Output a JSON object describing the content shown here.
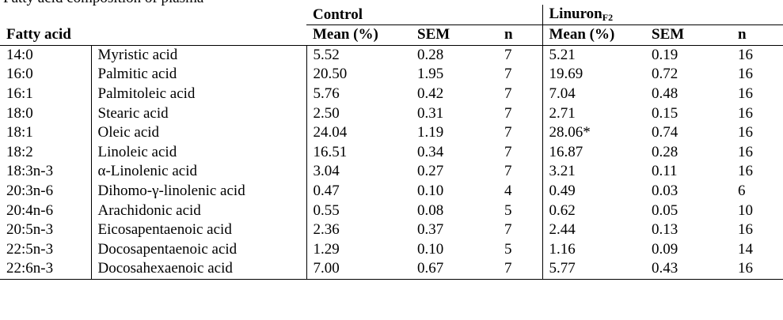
{
  "caption_fragment": "Fatty acid composition of plasma",
  "header": {
    "control_group": "Control",
    "linuron_group": "Linuron",
    "linuron_subscript": "F2",
    "fatty_acid": "Fatty acid",
    "mean_label": "Mean (%)",
    "sem_label": "SEM",
    "n_label": "n"
  },
  "rows": [
    {
      "code": "14:0",
      "name": "Myristic acid",
      "c_mean": "5.52",
      "c_sem": "0.28",
      "c_n": "7",
      "l_mean": "5.21",
      "l_sem": "0.19",
      "l_n": "16"
    },
    {
      "code": "16:0",
      "name": "Palmitic acid",
      "c_mean": "20.50",
      "c_sem": "1.95",
      "c_n": "7",
      "l_mean": "19.69",
      "l_sem": "0.72",
      "l_n": "16"
    },
    {
      "code": "16:1",
      "name": "Palmitoleic acid",
      "c_mean": "5.76",
      "c_sem": "0.42",
      "c_n": "7",
      "l_mean": "7.04",
      "l_sem": "0.48",
      "l_n": "16"
    },
    {
      "code": "18:0",
      "name": "Stearic acid",
      "c_mean": "2.50",
      "c_sem": "0.31",
      "c_n": "7",
      "l_mean": "2.71",
      "l_sem": "0.15",
      "l_n": "16"
    },
    {
      "code": "18:1",
      "name": "Oleic acid",
      "c_mean": "24.04",
      "c_sem": "1.19",
      "c_n": "7",
      "l_mean": "28.06*",
      "l_sem": "0.74",
      "l_n": "16"
    },
    {
      "code": "18:2",
      "name": "Linoleic acid",
      "c_mean": "16.51",
      "c_sem": "0.34",
      "c_n": "7",
      "l_mean": "16.87",
      "l_sem": "0.28",
      "l_n": "16"
    },
    {
      "code": "18:3n-3",
      "name": "α-Linolenic acid",
      "c_mean": "3.04",
      "c_sem": "0.27",
      "c_n": "7",
      "l_mean": "3.21",
      "l_sem": "0.11",
      "l_n": "16"
    },
    {
      "code": "20:3n-6",
      "name": "Dihomo-γ-linolenic acid",
      "c_mean": "0.47",
      "c_sem": "0.10",
      "c_n": "4",
      "l_mean": "0.49",
      "l_sem": "0.03",
      "l_n": "6"
    },
    {
      "code": "20:4n-6",
      "name": "Arachidonic acid",
      "c_mean": "0.55",
      "c_sem": "0.08",
      "c_n": "5",
      "l_mean": "0.62",
      "l_sem": "0.05",
      "l_n": "10"
    },
    {
      "code": "20:5n-3",
      "name": "Eicosapentaenoic acid",
      "c_mean": "2.36",
      "c_sem": "0.37",
      "c_n": "7",
      "l_mean": "2.44",
      "l_sem": "0.13",
      "l_n": "16"
    },
    {
      "code": "22:5n-3",
      "name": "Docosapentaenoic acid",
      "c_mean": "1.29",
      "c_sem": "0.10",
      "c_n": "5",
      "l_mean": "1.16",
      "l_sem": "0.09",
      "l_n": "14"
    },
    {
      "code": "22:6n-3",
      "name": "Docosahexaenoic acid",
      "c_mean": "7.00",
      "c_sem": "0.67",
      "c_n": "7",
      "l_mean": "5.77",
      "l_sem": "0.43",
      "l_n": "16"
    }
  ]
}
